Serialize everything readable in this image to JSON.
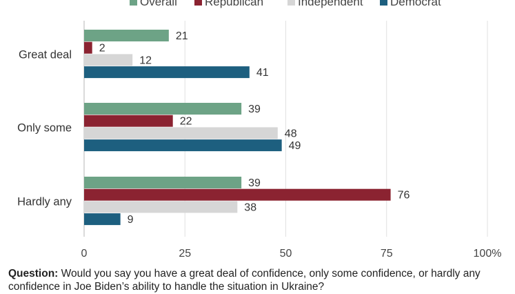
{
  "chart_data": {
    "type": "bar",
    "orientation": "horizontal",
    "categories": [
      "Great deal",
      "Only some",
      "Hardly any"
    ],
    "series": [
      {
        "name": "Overall",
        "color": "#6da386",
        "values": [
          21,
          39,
          39
        ]
      },
      {
        "name": "Republican",
        "color": "#8b2331",
        "values": [
          2,
          22,
          76
        ]
      },
      {
        "name": "Independent",
        "color": "#d6d6d6",
        "values": [
          12,
          48,
          38
        ]
      },
      {
        "name": "Democrat",
        "color": "#1d5f7f",
        "values": [
          41,
          49,
          9
        ]
      }
    ],
    "xlim": [
      0,
      100
    ],
    "x_ticks": [
      "0",
      "25",
      "50",
      "75",
      "100%"
    ],
    "x_tick_values": [
      0,
      25,
      50,
      75,
      100
    ],
    "grid": "vertical",
    "legend": "top"
  },
  "question": {
    "label": "Question:",
    "text": "Would you say you have a great deal of confidence, only some confidence, or hardly any confidence in Joe Biden’s ability to handle the situation in Ukraine?"
  }
}
